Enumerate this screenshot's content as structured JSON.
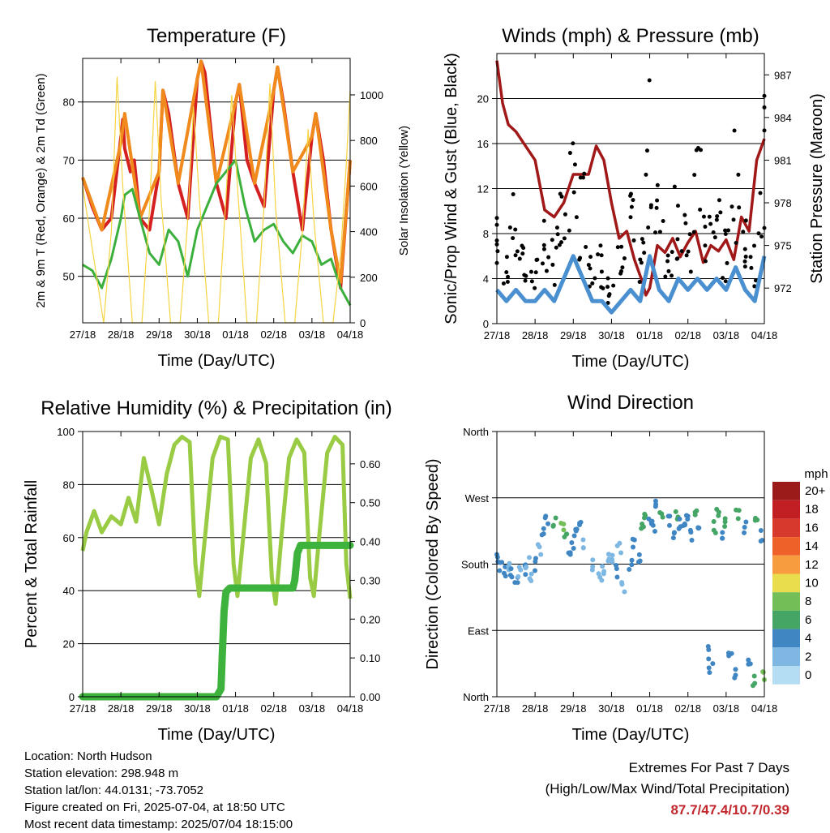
{
  "colors": {
    "temp_red": "#d42020",
    "temp_orange": "#f08a1c",
    "dewpoint_green": "#3cb03c",
    "solar_yellow": "#f5d442",
    "gust_black": "#000000",
    "wind_blue": "#4a90d0",
    "pressure_maroon": "#a01818",
    "rh_green": "#99cc44",
    "precip_green": "#3db23d",
    "extremes_red": "#c1272d"
  },
  "info": {
    "location": "Location: North Hudson",
    "elevation": "Station elevation: 298.948 m",
    "latlon": "Station lat/lon: 44.0131; -73.7052",
    "created": "Figure created on Fri, 2025-07-04, at 18:50 UTC",
    "recent": "Most recent data timestamp: 2025/07/04 18:15:00"
  },
  "extremes": {
    "title": "Extremes For Past 7 Days",
    "subtitle": "(High/Low/Max Wind/Total Precipitation)",
    "values": "87.7/47.4/10.7/0.39"
  },
  "chart_data": [
    {
      "type": "line",
      "title": "Temperature (F)",
      "xlabel": "Time (Day/UTC)",
      "ylabel": "2m & 9m T (Red, Orange) & 2m Td (Green)",
      "ylabel_right": "Solar Insolation (Yellow)",
      "x_ticks": [
        "27/18",
        "28/18",
        "29/18",
        "30/18",
        "01/18",
        "02/18",
        "03/18",
        "04/18"
      ],
      "xlim": [
        0,
        7
      ],
      "ylim": [
        42,
        87.5
      ],
      "y_ticks": [
        50,
        60,
        70,
        80
      ],
      "ylim_right": [
        0,
        1160
      ],
      "y_ticks_right": [
        0,
        200,
        400,
        600,
        800,
        1000
      ],
      "grid": true,
      "series": [
        {
          "name": "2m T",
          "color_key": "temp_red",
          "x": [
            0,
            0.25,
            0.5,
            0.75,
            1.0,
            1.05,
            1.1,
            1.25,
            1.35,
            1.5,
            1.75,
            2.0,
            2.1,
            2.25,
            2.5,
            2.75,
            3.0,
            3.1,
            3.2,
            3.5,
            3.75,
            4.0,
            4.1,
            4.3,
            4.5,
            4.75,
            5.0,
            5.1,
            5.25,
            5.5,
            5.75,
            6.0,
            6.1,
            6.3,
            6.5,
            6.75,
            7.0
          ],
          "y": [
            67,
            62,
            58,
            60,
            74,
            77,
            72,
            68,
            70,
            60,
            58,
            68,
            82,
            78,
            66,
            60,
            84,
            87,
            85,
            66,
            60,
            80,
            83,
            70,
            66,
            62,
            82,
            86,
            80,
            68,
            58,
            74,
            78,
            70,
            58,
            48,
            70
          ]
        },
        {
          "name": "9m T",
          "color_key": "temp_orange",
          "x": [
            0,
            0.5,
            1.0,
            1.1,
            1.5,
            2.0,
            2.1,
            2.5,
            3.0,
            3.1,
            3.5,
            4.0,
            4.1,
            4.5,
            5.0,
            5.1,
            5.5,
            6.0,
            6.1,
            6.5,
            6.75,
            7.0
          ],
          "y": [
            67,
            58,
            73,
            78,
            60,
            68,
            82,
            66,
            84,
            87,
            66,
            80,
            83,
            66,
            82,
            86,
            68,
            74,
            78,
            58,
            49,
            70
          ]
        },
        {
          "name": "2m Td",
          "color_key": "dewpoint_green",
          "x": [
            0,
            0.25,
            0.5,
            0.75,
            1.0,
            1.1,
            1.3,
            1.5,
            1.75,
            2.0,
            2.25,
            2.5,
            2.75,
            3.0,
            3.25,
            3.5,
            3.75,
            4.0,
            4.25,
            4.5,
            4.75,
            5.0,
            5.25,
            5.5,
            5.75,
            6.0,
            6.25,
            6.5,
            6.75,
            7.0
          ],
          "y": [
            52,
            51,
            48,
            53,
            60,
            64,
            65,
            60,
            54,
            52,
            58,
            56,
            50,
            58,
            62,
            66,
            68,
            70,
            62,
            56,
            58,
            59,
            56,
            54,
            57,
            56,
            52,
            53,
            48,
            45
          ]
        },
        {
          "name": "Solar",
          "axis": "right",
          "color_key": "solar_yellow",
          "x": [
            0,
            0.55,
            0.75,
            0.9,
            1.05,
            1.3,
            1.55,
            1.75,
            1.9,
            2.05,
            2.3,
            2.55,
            2.75,
            2.9,
            3.05,
            3.3,
            3.55,
            3.75,
            3.9,
            4.05,
            4.3,
            4.55,
            4.75,
            4.9,
            5.05,
            5.3,
            5.55,
            5.75,
            5.9,
            6.05,
            6.3,
            6.55,
            6.75,
            6.9,
            7.0
          ],
          "y": [
            600,
            0,
            400,
            1080,
            600,
            0,
            0,
            500,
            1060,
            550,
            0,
            0,
            450,
            950,
            550,
            0,
            0,
            550,
            1000,
            600,
            0,
            0,
            520,
            1050,
            500,
            0,
            0,
            400,
            850,
            450,
            0,
            0,
            300,
            700,
            1020
          ]
        }
      ]
    },
    {
      "type": "line",
      "title": "Winds (mph) & Pressure (mb)",
      "xlabel": "Time (Day/UTC)",
      "ylabel": "Sonic/Prop Wind & Gust (Blue, Black)",
      "ylabel_right": "Station Pressure (Maroon)",
      "x_ticks": [
        "27/18",
        "28/18",
        "29/18",
        "30/18",
        "01/18",
        "02/18",
        "03/18",
        "04/18"
      ],
      "xlim": [
        0,
        7
      ],
      "ylim": [
        0,
        24
      ],
      "y_ticks": [
        0,
        4,
        8,
        12,
        16,
        20
      ],
      "ylim_right": [
        969.5,
        988.5
      ],
      "y_ticks_right": [
        972,
        975,
        978,
        981,
        984,
        987
      ],
      "grid": true,
      "series": [
        {
          "name": "Pressure",
          "axis": "right",
          "color_key": "pressure_maroon",
          "x": [
            0,
            0.15,
            0.3,
            0.5,
            0.75,
            1.0,
            1.25,
            1.5,
            1.75,
            2.0,
            2.2,
            2.4,
            2.6,
            2.8,
            3.0,
            3.2,
            3.4,
            3.6,
            3.8,
            3.9,
            4.0,
            4.2,
            4.4,
            4.6,
            4.8,
            5.0,
            5.2,
            5.4,
            5.6,
            5.8,
            6.0,
            6.2,
            6.4,
            6.6,
            6.8,
            7.0
          ],
          "y": [
            988,
            985,
            983.5,
            983,
            982,
            981,
            977.5,
            977,
            978,
            980,
            980,
            980,
            982,
            981,
            978,
            975.5,
            976,
            974,
            972.5,
            971.5,
            972,
            975,
            974.5,
            975.5,
            974.2,
            975.2,
            976,
            973.8,
            975,
            974.6,
            975.4,
            974,
            977,
            976,
            981,
            982.5
          ]
        },
        {
          "name": "Gust",
          "color_key": "gust_black",
          "x": [
            0,
            0.25,
            0.5,
            0.75,
            1.0,
            1.25,
            1.5,
            1.75,
            2.0,
            2.25,
            2.5,
            2.75,
            3.0,
            3.25,
            3.5,
            3.75,
            4.0,
            4.25,
            4.5,
            4.75,
            5.0,
            5.25,
            5.5,
            5.75,
            6.0,
            6.25,
            6.5,
            6.75,
            7.0
          ],
          "y": [
            7,
            6,
            8,
            5,
            5,
            7,
            6,
            8,
            12,
            10,
            6,
            5,
            3,
            5,
            8,
            6,
            15,
            9,
            6,
            10,
            8,
            11,
            8,
            9,
            6,
            12,
            8,
            6,
            14
          ]
        },
        {
          "name": "Wind",
          "color_key": "wind_blue",
          "x": [
            0,
            0.25,
            0.5,
            0.75,
            1.0,
            1.25,
            1.5,
            1.75,
            2.0,
            2.25,
            2.5,
            2.75,
            3.0,
            3.25,
            3.5,
            3.75,
            4.0,
            4.25,
            4.5,
            4.75,
            5.0,
            5.25,
            5.5,
            5.75,
            6.0,
            6.25,
            6.5,
            6.75,
            7.0
          ],
          "y": [
            3,
            2,
            3,
            2,
            2,
            3,
            2,
            4,
            6,
            4,
            2,
            2,
            1,
            2,
            3,
            2,
            6,
            3,
            2,
            4,
            3,
            4,
            3,
            4,
            3,
            5,
            3,
            2,
            6
          ]
        }
      ]
    },
    {
      "type": "line",
      "title": "Relative Humidity (%) & Precipitation (in)",
      "xlabel": "Time (Day/UTC)",
      "ylabel": "Percent & Total Rainfall",
      "x_ticks": [
        "27/18",
        "28/18",
        "29/18",
        "30/18",
        "01/18",
        "02/18",
        "03/18",
        "04/18"
      ],
      "xlim": [
        0,
        7
      ],
      "ylim": [
        0,
        100
      ],
      "y_ticks": [
        0,
        20,
        40,
        60,
        80,
        100
      ],
      "ylim_right": [
        0,
        0.6833
      ],
      "y_ticks_right": [
        "0.00",
        "0.10",
        "0.20",
        "0.30",
        "0.40",
        "0.50",
        "0.60"
      ],
      "grid": true,
      "series": [
        {
          "name": "RH",
          "color_key": "rh_green",
          "x": [
            0,
            0.1,
            0.3,
            0.5,
            0.75,
            1.0,
            1.2,
            1.4,
            1.6,
            1.8,
            2.0,
            2.2,
            2.4,
            2.6,
            2.8,
            2.95,
            3.05,
            3.2,
            3.4,
            3.6,
            3.8,
            3.95,
            4.05,
            4.2,
            4.4,
            4.6,
            4.8,
            4.95,
            5.05,
            5.2,
            5.4,
            5.6,
            5.8,
            5.95,
            6.05,
            6.2,
            6.4,
            6.6,
            6.8,
            6.9,
            7.0
          ],
          "y": [
            55,
            62,
            70,
            62,
            68,
            65,
            75,
            66,
            90,
            78,
            65,
            84,
            95,
            98,
            96,
            50,
            38,
            60,
            90,
            98,
            97,
            50,
            38,
            60,
            90,
            97,
            88,
            45,
            35,
            60,
            90,
            97,
            92,
            45,
            38,
            62,
            92,
            98,
            95,
            50,
            37
          ]
        },
        {
          "name": "Precip",
          "axis": "right",
          "color_key": "precip_green",
          "x": [
            0,
            3.5,
            3.62,
            3.65,
            3.7,
            3.75,
            3.85,
            4.0,
            4.5,
            5.0,
            5.5,
            5.55,
            5.62,
            5.7,
            5.75,
            6.0,
            6.5,
            7.0
          ],
          "y": [
            0,
            0,
            0.02,
            0.1,
            0.22,
            0.27,
            0.28,
            0.28,
            0.28,
            0.28,
            0.28,
            0.3,
            0.37,
            0.39,
            0.39,
            0.39,
            0.39,
            0.39
          ]
        }
      ]
    },
    {
      "type": "scatter",
      "title": "Wind Direction",
      "xlabel": "Time (Day/UTC)",
      "ylabel": "Direction (Colored By Speed)",
      "x_ticks": [
        "27/18",
        "28/18",
        "29/18",
        "30/18",
        "01/18",
        "02/18",
        "03/18",
        "04/18"
      ],
      "xlim": [
        0,
        7
      ],
      "ylim": [
        0,
        360
      ],
      "y_tick_labels": [
        "North",
        "East",
        "South",
        "West",
        "North"
      ],
      "y_ticks": [
        0,
        90,
        180,
        270,
        360
      ],
      "grid": true,
      "legend": {
        "title": "mph",
        "labels": [
          "20+",
          "18",
          "16",
          "14",
          "12",
          "10",
          "8",
          "6",
          "4",
          "2",
          "0"
        ],
        "colors": [
          "#9b1b1b",
          "#c11f23",
          "#d73a2c",
          "#ee6229",
          "#f79d40",
          "#e9dc4d",
          "#74be58",
          "#44a564",
          "#3f86c3",
          "#7db7e2",
          "#b4ddf3"
        ]
      },
      "series": [
        {
          "name": "direction",
          "x": [
            0,
            0.1,
            0.2,
            0.3,
            0.4,
            0.5,
            0.6,
            0.7,
            0.8,
            0.9,
            1.0,
            1.1,
            1.2,
            1.3,
            1.5,
            1.7,
            1.8,
            1.9,
            2.0,
            2.1,
            2.2,
            2.3,
            2.5,
            2.7,
            2.8,
            2.9,
            3.0,
            3.1,
            3.2,
            3.3,
            3.5,
            3.6,
            3.7,
            3.8,
            3.9,
            4.0,
            4.1,
            4.2,
            4.3,
            4.5,
            4.6,
            4.7,
            4.8,
            4.9,
            5.0,
            5.1,
            5.2,
            5.3,
            5.5,
            5.6,
            5.7,
            5.8,
            5.9,
            6.0,
            6.1,
            6.2,
            6.3,
            6.5,
            6.6,
            6.7,
            6.8,
            6.9,
            7.0
          ],
          "y": [
            185,
            175,
            170,
            180,
            165,
            160,
            170,
            175,
            180,
            165,
            180,
            200,
            220,
            240,
            235,
            230,
            220,
            190,
            210,
            230,
            240,
            210,
            180,
            160,
            175,
            190,
            185,
            170,
            200,
            150,
            180,
            210,
            190,
            230,
            250,
            240,
            230,
            260,
            250,
            240,
            220,
            250,
            235,
            230,
            240,
            220,
            245,
            230,
            60,
            40,
            230,
            250,
            220,
            240,
            60,
            30,
            250,
            230,
            50,
            20,
            240,
            220,
            30
          ]
        },
        {
          "name": "speed",
          "x": [
            0,
            0.1,
            0.2,
            0.3,
            0.4,
            0.5,
            0.6,
            0.7,
            0.8,
            0.9,
            1.0,
            1.1,
            1.2,
            1.3,
            1.5,
            1.7,
            1.8,
            1.9,
            2.0,
            2.1,
            2.2,
            2.3,
            2.5,
            2.7,
            2.8,
            2.9,
            3.0,
            3.1,
            3.2,
            3.3,
            3.5,
            3.6,
            3.7,
            3.8,
            3.9,
            4.0,
            4.1,
            4.2,
            4.3,
            4.5,
            4.6,
            4.7,
            4.8,
            4.9,
            5.0,
            5.1,
            5.2,
            5.3,
            5.5,
            5.6,
            5.7,
            5.8,
            5.9,
            6.0,
            6.1,
            6.2,
            6.3,
            6.5,
            6.6,
            6.7,
            6.8,
            6.9,
            7.0
          ],
          "y": [
            3,
            4,
            3,
            2,
            3,
            3,
            2,
            3,
            2,
            2,
            3,
            2,
            3,
            4,
            6,
            7,
            5,
            3,
            4,
            3,
            3,
            2,
            2,
            2,
            2,
            2,
            2,
            3,
            2,
            2,
            3,
            3,
            4,
            6,
            5,
            4,
            3,
            4,
            5,
            4,
            3,
            6,
            4,
            3,
            4,
            3,
            6,
            4,
            4,
            3,
            6,
            5,
            4,
            6,
            3,
            4,
            5,
            4,
            3,
            5,
            6,
            4,
            7
          ]
        }
      ]
    }
  ]
}
